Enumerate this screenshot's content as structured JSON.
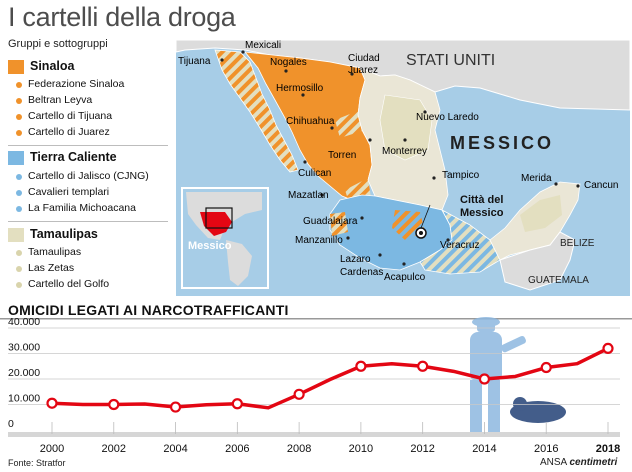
{
  "title": "I cartelli della droga",
  "legend": {
    "subtitle": "Gruppi e sottogruppi",
    "groups": [
      {
        "name": "Sinaloa",
        "color": "#f0922b",
        "items": [
          "Federazione Sinaloa",
          "Beltran Leyva",
          "Cartello di Tijuana",
          "Cartello di Juarez"
        ]
      },
      {
        "name": "Tierra Caliente",
        "color": "#7cb8e2",
        "items": [
          "Cartello di Jalisco (CJNG)",
          "Cavalieri templari",
          "La Familia Michoacana"
        ]
      },
      {
        "name": "Tamaulipas",
        "color": "#e3dfc0",
        "items": [
          "Tamaulipas",
          "Las Zetas",
          "Cartello del Golfo"
        ]
      }
    ]
  },
  "map": {
    "country_labels": {
      "usa": "STATI UNITI",
      "mexico": "MESSICO",
      "belize": "BELIZE",
      "guatemala": "GUATEMALA"
    },
    "capital": "Città del\nMessico",
    "inset_label": "Messico",
    "cities": [
      "Tijuana",
      "Mexicali",
      "Nogales",
      "Ciudad\nJuarez",
      "Hermosillo",
      "Chihuahua",
      "Torren",
      "Monterrey",
      "Nuevo Laredo",
      "Culican",
      "Mazatlan",
      "Tampico",
      "Merida",
      "Cancun",
      "Guadalajara",
      "Manzanillo",
      "Lazaro\nCardenas",
      "Acapulco",
      "Veracruz"
    ],
    "colors": {
      "sea": "#a7cde7",
      "usa": "#dcdcdc",
      "sinaloa": "#f0922b",
      "tierra_caliente": "#7cb8e2",
      "tamaulipas": "#e3dfc0",
      "neutral": "#eae6d6"
    }
  },
  "chart_title": "OMICIDI LEGATI AI NARCOTRAFFICANTI",
  "chart_data": {
    "type": "line",
    "title": "OMICIDI LEGATI AI NARCOTRAFFICANTI",
    "x": [
      2000,
      2001,
      2002,
      2003,
      2004,
      2005,
      2006,
      2007,
      2008,
      2009,
      2010,
      2011,
      2012,
      2013,
      2014,
      2015,
      2016,
      2017,
      2018
    ],
    "y": [
      10500,
      10000,
      10000,
      10200,
      9000,
      9900,
      10300,
      8700,
      14000,
      19800,
      25000,
      26000,
      25000,
      23000,
      20000,
      21000,
      24500,
      26000,
      32000
    ],
    "xticks": [
      "2000",
      "2002",
      "2004",
      "2006",
      "2008",
      "2010",
      "2012",
      "2014",
      "2016",
      "2018"
    ],
    "yticks": [
      "0",
      "10.000",
      "20.000",
      "30.000",
      "40.000"
    ],
    "ylim": [
      0,
      40000
    ],
    "line_color": "#e30613",
    "grid": true
  },
  "source": "Fonte: Stratfor",
  "credit": {
    "ansa": "ANSA",
    "brand": "centimetri"
  }
}
